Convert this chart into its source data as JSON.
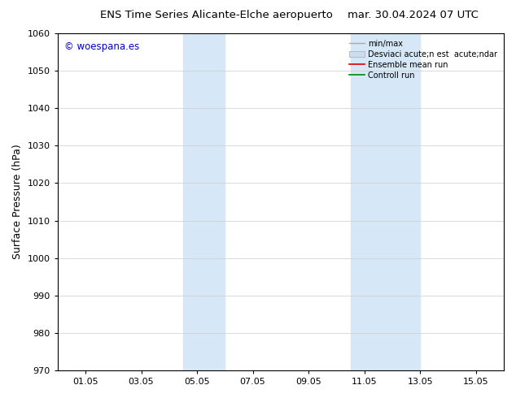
{
  "title_left": "ENS Time Series Alicante-Elche aeropuerto",
  "title_right": "mar. 30.04.2024 07 UTC",
  "ylabel": "Surface Pressure (hPa)",
  "ylim": [
    970,
    1060
  ],
  "yticks": [
    970,
    980,
    990,
    1000,
    1010,
    1020,
    1030,
    1040,
    1050,
    1060
  ],
  "xtick_labels": [
    "01.05",
    "03.05",
    "05.05",
    "07.05",
    "09.05",
    "11.05",
    "13.05",
    "15.05"
  ],
  "xtick_positions": [
    1,
    3,
    5,
    7,
    9,
    11,
    13,
    15
  ],
  "xlim": [
    0.0,
    16.0
  ],
  "shaded_regions": [
    {
      "xmin": 4.5,
      "xmax": 6.0,
      "color": "#d6e8f7"
    },
    {
      "xmin": 10.5,
      "xmax": 13.0,
      "color": "#d6e8f7"
    }
  ],
  "watermark_text": "© woespana.es",
  "watermark_color": "#0000cc",
  "legend_labels": [
    "min/max",
    "Desviaci acute;n est  acute;ndar",
    "Ensemble mean run",
    "Controll run"
  ],
  "legend_colors": [
    "#aaaaaa",
    "#ccddf0",
    "#dd0000",
    "#008800"
  ],
  "bg_color": "#ffffff",
  "grid_color": "#cccccc",
  "title_fontsize": 9.5,
  "tick_fontsize": 8,
  "ylabel_fontsize": 9,
  "legend_fontsize": 7,
  "watermark_fontsize": 8.5
}
